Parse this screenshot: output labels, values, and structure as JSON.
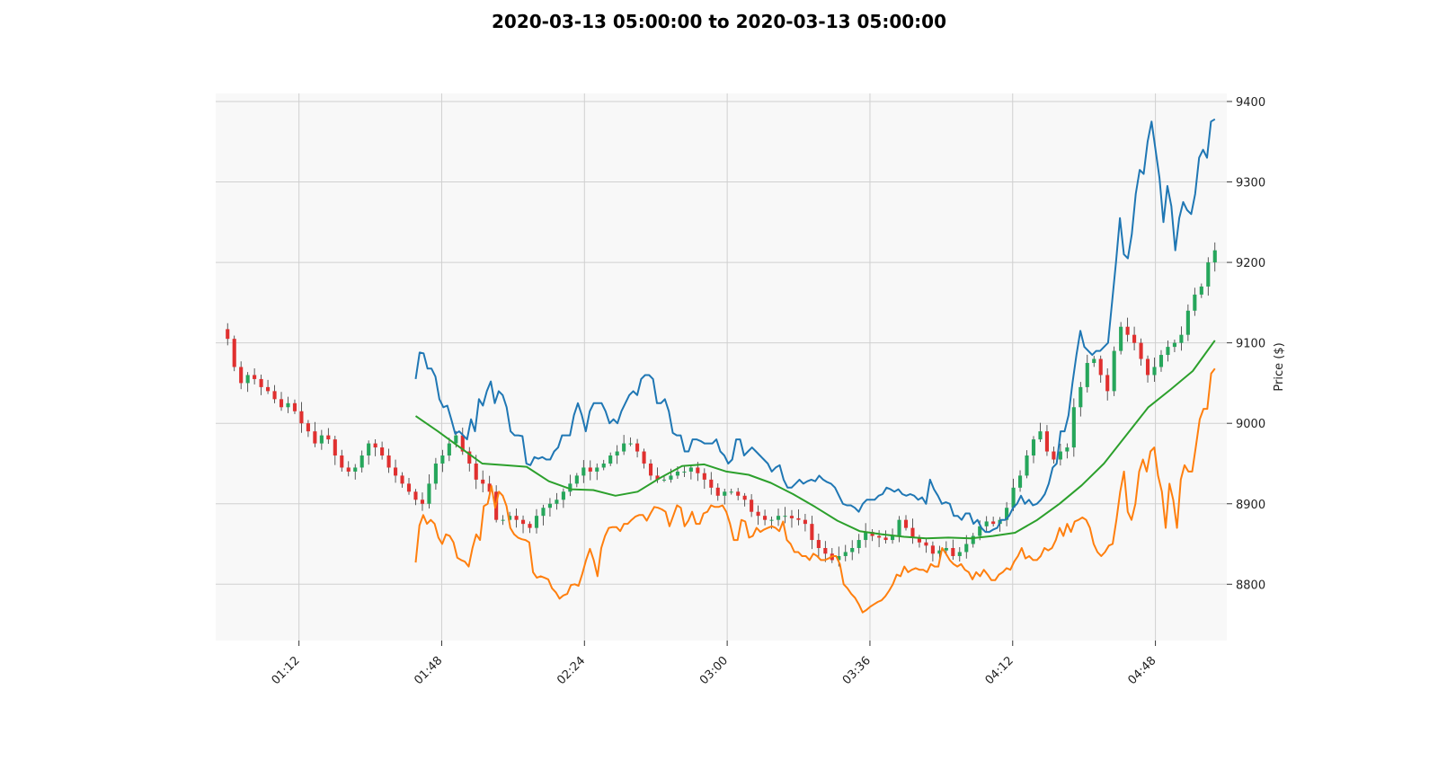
{
  "chart_data": {
    "type": "candlestick",
    "title": "2020-03-13 05:00:00 to 2020-03-13 05:00:00",
    "ylabel": "Price ($)",
    "y_axis_side": "right",
    "ylim": [
      8730,
      9410
    ],
    "yticks": [
      8800,
      8900,
      9000,
      9100,
      9200,
      9300,
      9400
    ],
    "xlim": [
      "00:51",
      "05:06"
    ],
    "xticks": [
      "01:12",
      "01:48",
      "02:24",
      "03:00",
      "03:36",
      "04:12",
      "04:48"
    ],
    "grid": true,
    "colors": {
      "up": "#26a65b",
      "down": "#e0302f",
      "wick": "#333333",
      "background": "#f8f8f8",
      "grid": "#d0d0d0"
    },
    "close_series": [
      9105,
      9070,
      9050,
      9060,
      9055,
      9045,
      9040,
      9030,
      9020,
      9025,
      9015,
      9000,
      8990,
      8975,
      8985,
      8980,
      8960,
      8945,
      8940,
      8945,
      8960,
      8975,
      8970,
      8960,
      8945,
      8935,
      8925,
      8915,
      8905,
      8900,
      8925,
      8950,
      8960,
      8975,
      8985,
      8965,
      8950,
      8930,
      8925,
      8915,
      8880,
      8880,
      8885,
      8880,
      8875,
      8870,
      8885,
      8895,
      8900,
      8905,
      8915,
      8925,
      8935,
      8945,
      8940,
      8945,
      8950,
      8960,
      8965,
      8975,
      8975,
      8965,
      8950,
      8935,
      8930,
      8930,
      8935,
      8940,
      8940,
      8945,
      8938,
      8930,
      8920,
      8910,
      8915,
      8915,
      8910,
      8905,
      8890,
      8885,
      8880,
      8880,
      8885,
      8885,
      8882,
      8880,
      8875,
      8855,
      8845,
      8838,
      8830,
      8835,
      8840,
      8845,
      8855,
      8865,
      8860,
      8858,
      8855,
      8860,
      8880,
      8870,
      8858,
      8852,
      8848,
      8838,
      8842,
      8845,
      8835,
      8840,
      8850,
      8860,
      8872,
      8878,
      8875,
      8880,
      8895,
      8920,
      8935,
      8960,
      8980,
      8990,
      8965,
      8955,
      8965,
      8970,
      9020,
      9045,
      9075,
      9080,
      9060,
      9040,
      9090,
      9120,
      9110,
      9100,
      9080,
      9060,
      9070,
      9085,
      9095,
      9100,
      9110,
      9140,
      9160,
      9170,
      9200,
      9215
    ],
    "series": [
      {
        "name": "",
        "color": "#1f77b4",
        "start_index": 28,
        "values": [
          9055,
          9088,
          9087,
          9068,
          9068,
          9058,
          9030,
          9020,
          9022,
          9005,
          8987,
          8990,
          8985,
          8980,
          9005,
          8990,
          9030,
          9022,
          9040,
          9052,
          9025,
          9040,
          9035,
          9020,
          8990,
          8985,
          8985,
          8984,
          8950,
          8948,
          8958,
          8956,
          8958,
          8955,
          8955,
          8965,
          8970,
          8985,
          8985,
          8985,
          9010,
          9025,
          9010,
          8990,
          9015,
          9025,
          9025,
          9025,
          9015,
          9000,
          9005,
          9000,
          9015,
          9025,
          9035,
          9040,
          9035,
          9055,
          9060,
          9060,
          9055,
          9025,
          9025,
          9030,
          9015,
          8988,
          8985,
          8985,
          8965,
          8965,
          8980,
          8980,
          8978,
          8975,
          8975,
          8975,
          8980,
          8965,
          8960,
          8950,
          8955,
          8980,
          8980,
          8960,
          8965,
          8970,
          8965,
          8960,
          8955,
          8950,
          8940,
          8945,
          8948,
          8930,
          8920,
          8920,
          8925,
          8930,
          8925,
          8928,
          8930,
          8928,
          8935,
          8930,
          8927,
          8925,
          8920,
          8910,
          8900,
          8898,
          8898,
          8895,
          8890,
          8900,
          8905,
          8905,
          8905,
          8910,
          8912,
          8920,
          8918,
          8915,
          8918,
          8912,
          8910,
          8912,
          8910,
          8905,
          8908,
          8900,
          8930,
          8918,
          8910,
          8900,
          8902,
          8900,
          8885,
          8885,
          8880,
          8888,
          8888,
          8875,
          8880,
          8870,
          8865,
          8865,
          8868,
          8870,
          8880,
          8880,
          8885,
          8895,
          8900,
          8910,
          8900,
          8905,
          8898,
          8900,
          8905,
          8912,
          8925,
          8945,
          8950,
          8990,
          8990,
          9010,
          9050,
          9085,
          9115,
          9095,
          9090,
          9085,
          9090,
          9090,
          9095,
          9100,
          9150,
          9200,
          9255,
          9210,
          9205,
          9235,
          9285,
          9315,
          9310,
          9350,
          9375,
          9340,
          9305,
          9250,
          9295,
          9270,
          9215,
          9255,
          9275,
          9265,
          9260,
          9285,
          9330,
          9340,
          9330,
          9375,
          9378
        ]
      },
      {
        "name": "",
        "color": "#ff7f0e",
        "start_index": 28,
        "values": [
          8827,
          8873,
          8886,
          8875,
          8880,
          8875,
          8858,
          8850,
          8862,
          8860,
          8852,
          8833,
          8830,
          8828,
          8822,
          8845,
          8862,
          8855,
          8897,
          8900,
          8922,
          8895,
          8915,
          8910,
          8897,
          8870,
          8862,
          8858,
          8856,
          8855,
          8852,
          8815,
          8808,
          8810,
          8808,
          8806,
          8795,
          8790,
          8782,
          8786,
          8788,
          8799,
          8800,
          8798,
          8813,
          8830,
          8844,
          8830,
          8810,
          8845,
          8860,
          8870,
          8871,
          8871,
          8866,
          8875,
          8875,
          8880,
          8884,
          8886,
          8886,
          8879,
          8888,
          8896,
          8895,
          8893,
          8890,
          8872,
          8885,
          8898,
          8895,
          8872,
          8879,
          8890,
          8875,
          8875,
          8888,
          8890,
          8898,
          8896,
          8896,
          8898,
          8890,
          8875,
          8855,
          8855,
          8880,
          8878,
          8858,
          8860,
          8870,
          8865,
          8868,
          8870,
          8872,
          8870,
          8866,
          8878,
          8855,
          8850,
          8840,
          8840,
          8835,
          8835,
          8830,
          8838,
          8835,
          8830,
          8830,
          8832,
          8835,
          8835,
          8825,
          8800,
          8795,
          8788,
          8783,
          8775,
          8765,
          8768,
          8772,
          8775,
          8778,
          8780,
          8785,
          8792,
          8800,
          8812,
          8810,
          8822,
          8815,
          8818,
          8820,
          8818,
          8818,
          8815,
          8825,
          8822,
          8822,
          8845,
          8838,
          8830,
          8825,
          8822,
          8825,
          8818,
          8815,
          8806,
          8815,
          8810,
          8818,
          8812,
          8805,
          8805,
          8812,
          8815,
          8820,
          8818,
          8828,
          8835,
          8845,
          8832,
          8835,
          8830,
          8830,
          8835,
          8845,
          8842,
          8845,
          8855,
          8870,
          8860,
          8875,
          8865,
          8878,
          8880,
          8883,
          8880,
          8870,
          8850,
          8840,
          8835,
          8840,
          8848,
          8850,
          8880,
          8915,
          8940,
          8890,
          8880,
          8900,
          8940,
          8955,
          8940,
          8965,
          8970,
          8935,
          8915,
          8870,
          8925,
          8905,
          8870,
          8930,
          8948,
          8940,
          8940,
          8972,
          9005,
          9018,
          9018,
          9062,
          9068
        ]
      },
      {
        "name": "",
        "color": "#2ca02c",
        "start_index": 28,
        "values": [
          9009,
          8990,
          8970,
          8950,
          8948,
          8946,
          8928,
          8918,
          8917,
          8910,
          8915,
          8932,
          8947,
          8949,
          8940,
          8936,
          8926,
          8912,
          8896,
          8879,
          8866,
          8862,
          8859,
          8857,
          8858,
          8857,
          8860,
          8864,
          8880,
          8900,
          8923,
          8950,
          8985,
          9020,
          9042,
          9065,
          9103
        ]
      }
    ]
  }
}
